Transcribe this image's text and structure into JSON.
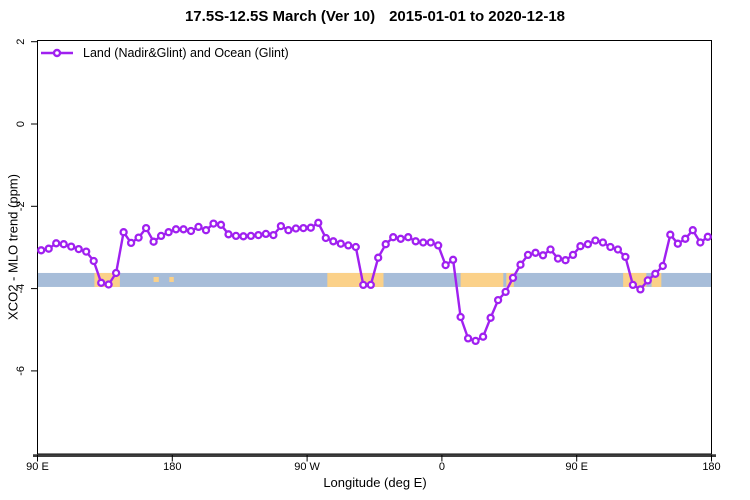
{
  "header": {
    "title_left": "17.5S-12.5S March (Ver 10)",
    "title_right": "2015-01-01 to 2020-12-18"
  },
  "legend": {
    "label": "Land (Nadir&Glint) and Ocean (Glint)",
    "line_color": "#a020f0",
    "marker": "open-circle"
  },
  "chart_data": {
    "type": "line",
    "title": "17.5S-12.5S March (Ver 10)  2015-01-01 to 2020-12-18",
    "xlabel": "Longitude (deg E)",
    "ylabel": "XCO2 - MLO trend (ppm)",
    "xlim": [
      90,
      540
    ],
    "ylim": [
      -8,
      2
    ],
    "grid": false,
    "legend_position": "top-left-inside",
    "x_ticks": [
      {
        "lon": 90,
        "label": "90 E"
      },
      {
        "lon": 180,
        "label": "180"
      },
      {
        "lon": 270,
        "label": "90 W"
      },
      {
        "lon": 360,
        "label": "0"
      },
      {
        "lon": 450,
        "label": "90 E"
      },
      {
        "lon": 540,
        "label": "180"
      }
    ],
    "y_ticks": [
      {
        "v": 2,
        "label": "2"
      },
      {
        "v": 0,
        "label": "0"
      },
      {
        "v": -2,
        "label": "-2"
      },
      {
        "v": -4,
        "label": "-4"
      },
      {
        "v": -6,
        "label": "-6"
      }
    ],
    "reference_band": {
      "color": "#a7bdd9",
      "highlight_color": "#fbd189",
      "y_top": -3.62,
      "y_bottom": -3.96,
      "highlight_segments_lon": [
        {
          "from": 128,
          "to": 145,
          "thin": false
        },
        {
          "from": 167.5,
          "to": 171,
          "thin": true
        },
        {
          "from": 178,
          "to": 181,
          "thin": true
        },
        {
          "from": 283.5,
          "to": 321,
          "thin": false
        },
        {
          "from": 372.5,
          "to": 401,
          "thin": false
        },
        {
          "from": 403,
          "to": 408,
          "thin": false
        },
        {
          "from": 481,
          "to": 496.5,
          "thin": false
        },
        {
          "from": 500,
          "to": 506.5,
          "thin": false
        }
      ]
    },
    "series": [
      {
        "name": "Land (Nadir&Glint) and Ocean (Glint)",
        "color": "#a020f0",
        "marker": "open-circle",
        "lon": [
          92.5,
          97.5,
          102.5,
          107.5,
          112.5,
          117.5,
          122.5,
          127.5,
          132.5,
          137.5,
          142.5,
          147.5,
          152.5,
          157.5,
          162.5,
          167.5,
          172.5,
          177.5,
          182.5,
          187.5,
          192.5,
          197.5,
          202.5,
          207.5,
          212.5,
          217.5,
          222.5,
          227.5,
          232.5,
          237.5,
          242.5,
          247.5,
          252.5,
          257.5,
          262.5,
          267.5,
          272.5,
          277.5,
          282.5,
          287.5,
          292.5,
          297.5,
          302.5,
          307.5,
          312.5,
          317.5,
          322.5,
          327.5,
          332.5,
          337.5,
          342.5,
          347.5,
          352.5,
          357.5,
          362.5,
          367.5,
          372.5,
          377.5,
          382.5,
          387.5,
          392.5,
          397.5,
          402.5,
          407.5,
          412.5,
          417.5,
          422.5,
          427.5,
          432.5,
          437.5,
          442.5,
          447.5,
          452.5,
          457.5,
          462.5,
          467.5,
          472.5,
          477.5,
          482.5,
          487.5,
          492.5,
          497.5,
          502.5,
          507.5,
          512.5,
          517.5,
          522.5,
          527.5,
          532.5,
          537.5
        ],
        "xco2_minus_mlo_trend_ppm": [
          -3.07,
          -3.03,
          -2.9,
          -2.92,
          -2.98,
          -3.04,
          -3.1,
          -3.33,
          -3.86,
          -3.9,
          -3.62,
          -2.63,
          -2.89,
          -2.76,
          -2.53,
          -2.86,
          -2.72,
          -2.63,
          -2.56,
          -2.56,
          -2.6,
          -2.5,
          -2.58,
          -2.42,
          -2.45,
          -2.68,
          -2.72,
          -2.73,
          -2.72,
          -2.7,
          -2.67,
          -2.7,
          -2.48,
          -2.58,
          -2.54,
          -2.53,
          -2.52,
          -2.4,
          -2.77,
          -2.85,
          -2.91,
          -2.95,
          -2.99,
          -3.91,
          -3.91,
          -3.25,
          -2.92,
          -2.75,
          -2.79,
          -2.75,
          -2.85,
          -2.88,
          -2.88,
          -2.95,
          -3.43,
          -3.3,
          -4.69,
          -5.21,
          -5.27,
          -5.17,
          -4.71,
          -4.28,
          -4.08,
          -3.74,
          -3.42,
          -3.18,
          -3.13,
          -3.19,
          -3.05,
          -3.27,
          -3.31,
          -3.18,
          -2.97,
          -2.92,
          -2.83,
          -2.88,
          -2.99,
          -3.05,
          -3.23,
          -3.91,
          -4.02,
          -3.8,
          -3.64,
          -3.45,
          -2.69,
          -2.91,
          -2.79,
          -2.58,
          -2.88,
          -2.74
        ]
      }
    ]
  }
}
